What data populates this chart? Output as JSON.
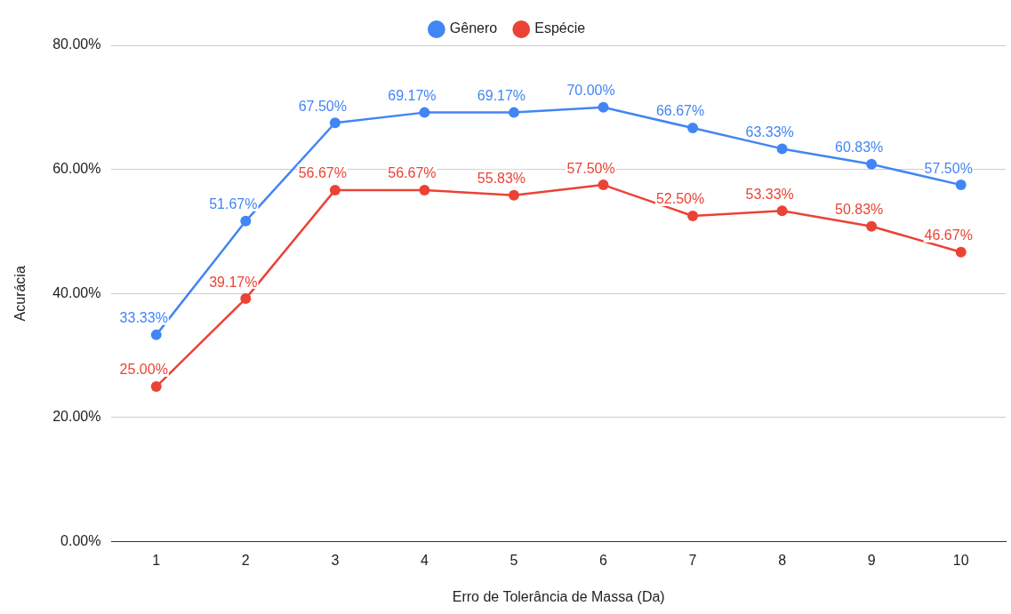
{
  "chart_data": {
    "type": "line",
    "xlabel": "Erro de Tolerância de Massa (Da)",
    "ylabel": "Acurácia",
    "categories": [
      "1",
      "2",
      "3",
      "4",
      "5",
      "6",
      "7",
      "8",
      "9",
      "10"
    ],
    "series": [
      {
        "name": "Gênero",
        "color": "#4285f4",
        "values": [
          33.33,
          51.67,
          67.5,
          69.17,
          69.17,
          70,
          66.67,
          63.33,
          60.83,
          57.5
        ],
        "value_labels": [
          "33.33%",
          "51.67%",
          "67.50%",
          "69.17%",
          "69.17%",
          "70.00%",
          "66.67%",
          "63.33%",
          "60.83%",
          "57.50%"
        ]
      },
      {
        "name": "Espécie",
        "color": "#ea4335",
        "values": [
          25,
          39.17,
          56.67,
          56.67,
          55.83,
          57.5,
          52.5,
          53.33,
          50.83,
          46.67
        ],
        "value_labels": [
          "25.00%",
          "39.17%",
          "56.67%",
          "56.67%",
          "55.83%",
          "57.50%",
          "52.50%",
          "53.33%",
          "50.83%",
          "46.67%"
        ]
      }
    ],
    "ylim": [
      0,
      80
    ],
    "yticks": [
      {
        "value": 0,
        "label": "0.00%"
      },
      {
        "value": 20,
        "label": "20.00%"
      },
      {
        "value": 40,
        "label": "40.00%"
      },
      {
        "value": 60,
        "label": "60.00%"
      },
      {
        "value": 80,
        "label": "80.00%"
      }
    ],
    "grid": "y",
    "legend": "top",
    "marker": "circle",
    "line_style": "solid"
  }
}
